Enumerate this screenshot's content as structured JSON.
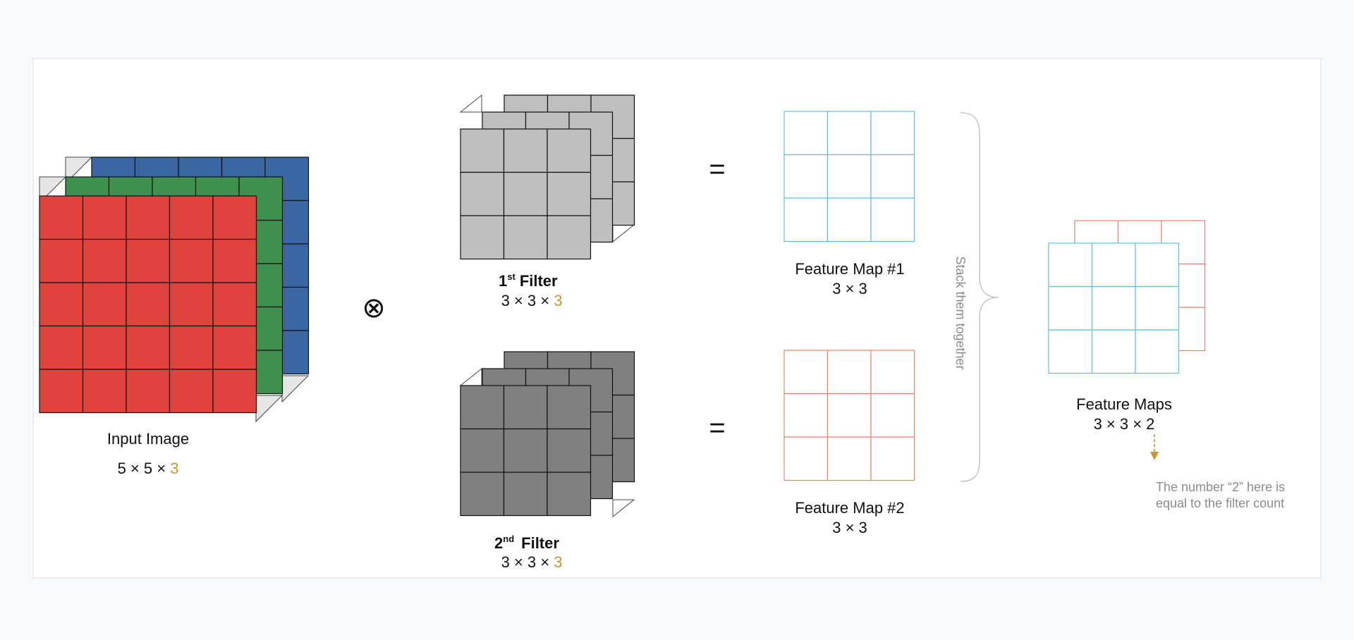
{
  "colors": {
    "page_bg": "#f7f9fc",
    "panel_bg": "#ffffff",
    "panel_border": "#e6e8ee",
    "red_channel": "#df433b",
    "green_channel": "#3f8f4f",
    "blue_channel": "#3a67a3",
    "filter1_face": "#bfbfbf",
    "filter2_face": "#808080",
    "grid_line": "#111111",
    "fmap1_line": "#5bbfe5",
    "fmap2_line": "#e8826a",
    "accent_gold": "#c99532",
    "muted_text": "#8b8b8b",
    "brace": "#c8c8c8"
  },
  "input_image": {
    "title": "Input Image",
    "dims_prefix": "5 × 5 × ",
    "dims_depth": "3"
  },
  "operator": "⊗",
  "equals": "=",
  "filter1": {
    "title_num": "1",
    "title_sup": "st",
    "title_word": "Filter",
    "dims_prefix": "3 × 3 × ",
    "dims_depth": "3"
  },
  "filter2": {
    "title_num": "2",
    "title_sup": "nd",
    "title_word": "Filter",
    "dims_prefix": "3 × 3 × ",
    "dims_depth": "3"
  },
  "feature_map1": {
    "title": "Feature Map #1",
    "dims": "3 × 3"
  },
  "feature_map2": {
    "title": "Feature Map #2",
    "dims": "3 × 3"
  },
  "stack_label": "Stack them together",
  "feature_maps": {
    "title": "Feature Maps",
    "dims": "3 × 3 × 2"
  },
  "note": {
    "line1": "The number “2” here is",
    "line2": "equal to the filter count"
  }
}
